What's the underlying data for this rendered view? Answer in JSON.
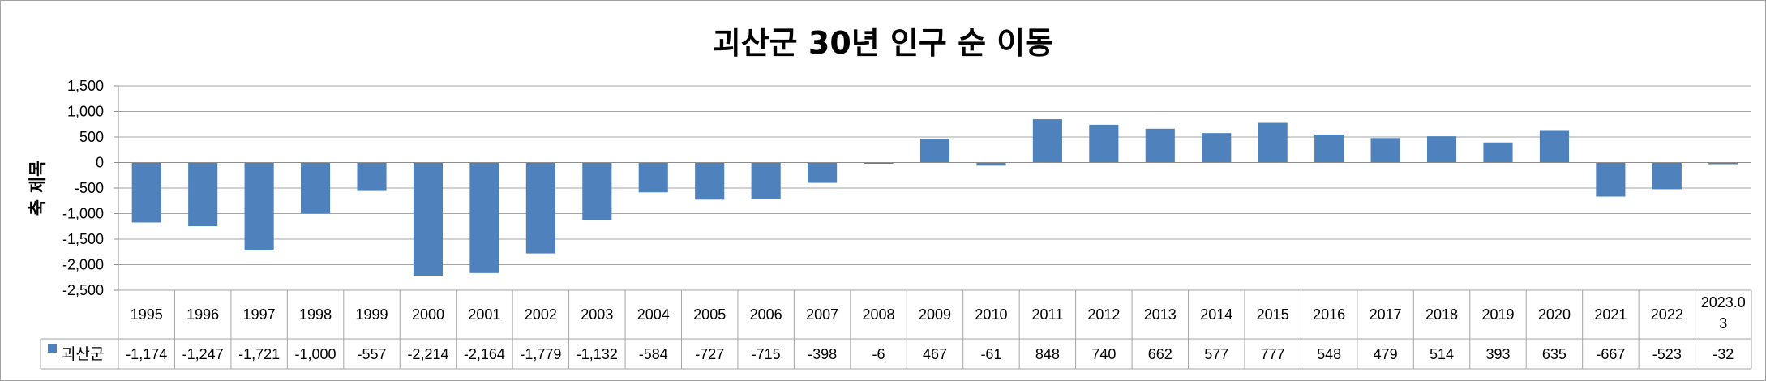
{
  "chart_data": {
    "type": "bar",
    "title": "괴산군 30년 인구 순 이동",
    "xlabel": "",
    "ylabel": "축 제목",
    "ylim": [
      -2500,
      1500
    ],
    "yticks": [
      "1,500",
      "1,000",
      "500",
      "0",
      "-500",
      "-1,000",
      "-1,500",
      "-2,000",
      "-2,500"
    ],
    "ytick_values": [
      1500,
      1000,
      500,
      0,
      -500,
      -1000,
      -1500,
      -2000,
      -2500
    ],
    "grid": true,
    "legend": "data-table-left",
    "categories": [
      "1995",
      "1996",
      "1997",
      "1998",
      "1999",
      "2000",
      "2001",
      "2002",
      "2003",
      "2004",
      "2005",
      "2006",
      "2007",
      "2008",
      "2009",
      "2010",
      "2011",
      "2012",
      "2013",
      "2014",
      "2015",
      "2016",
      "2017",
      "2018",
      "2019",
      "2020",
      "2021",
      "2022",
      "2023.03"
    ],
    "series": [
      {
        "name": "괴산군",
        "color": "#4f81bd",
        "values": [
          -1174,
          -1247,
          -1721,
          -1000,
          -557,
          -2214,
          -2164,
          -1779,
          -1132,
          -584,
          -727,
          -715,
          -398,
          -6,
          467,
          -61,
          848,
          740,
          662,
          577,
          777,
          548,
          479,
          514,
          393,
          635,
          -667,
          -523,
          -32
        ],
        "value_labels": [
          "-1,174",
          "-1,247",
          "-1,721",
          "-1,000",
          "-557",
          "-2,214",
          "-2,164",
          "-1,779",
          "-1,132",
          "-584",
          "-727",
          "-715",
          "-398",
          "-6",
          "467",
          "-61",
          "848",
          "740",
          "662",
          "577",
          "777",
          "548",
          "479",
          "514",
          "393",
          "635",
          "-667",
          "-523",
          "-32"
        ]
      }
    ]
  }
}
